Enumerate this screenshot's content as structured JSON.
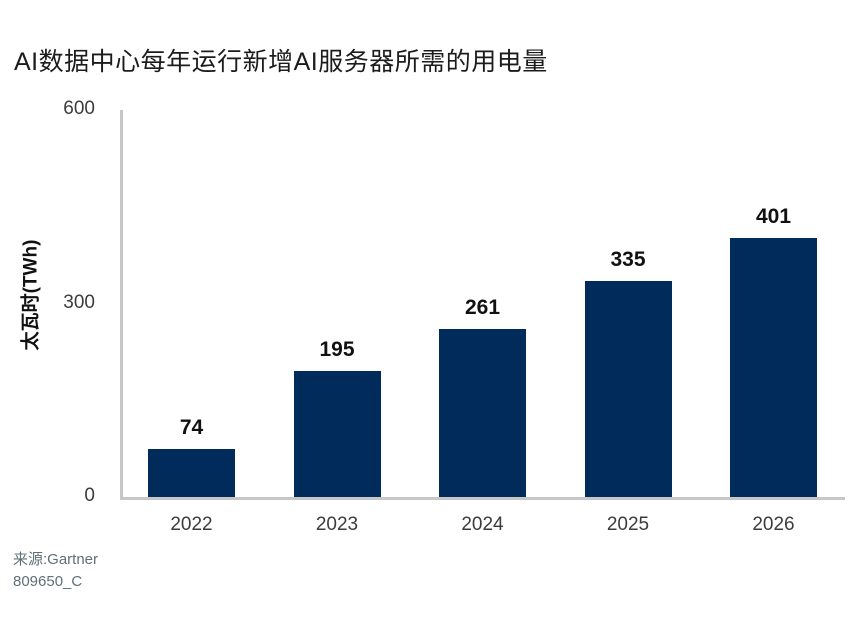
{
  "title": "AI数据中心每年运行新增AI服务器所需的用电量",
  "source": {
    "line1": "来源:Gartner",
    "line2": "809650_C"
  },
  "chart_data": {
    "type": "bar",
    "title": "AI数据中心每年运行新增AI服务器所需的用电量",
    "categories": [
      "2022",
      "2023",
      "2024",
      "2025",
      "2026"
    ],
    "values": [
      74,
      195,
      261,
      335,
      401
    ],
    "xlabel": "",
    "ylabel": "太瓦时(TWh)",
    "ylim": [
      0,
      600
    ],
    "yticks": [
      0,
      300,
      600
    ],
    "bar_color": "#002b5a",
    "axis_color": "#c7c7c7",
    "label_color": "#111111",
    "tick_color": "#3c3c3c",
    "grid": false,
    "legend": false,
    "data_labels": true
  }
}
